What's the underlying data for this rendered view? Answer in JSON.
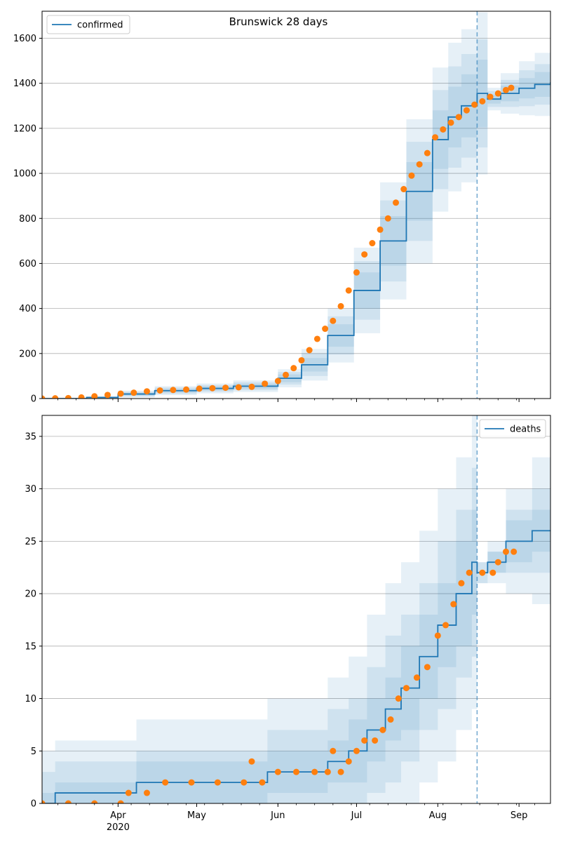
{
  "figure": {
    "title": "Brunswick 28 days"
  },
  "colors": {
    "model": "#1f77b4",
    "observed": "#ff7f0e",
    "grid": "#b0b0b0",
    "axis": "#000000"
  },
  "x_axis": {
    "range": [
      "2020-03-03",
      "2020-09-13"
    ],
    "month_ticks": [
      {
        "date": "2020-04-01",
        "label": "Apr",
        "sub": "2020"
      },
      {
        "date": "2020-05-01",
        "label": "May",
        "sub": ""
      },
      {
        "date": "2020-06-01",
        "label": "Jun",
        "sub": ""
      },
      {
        "date": "2020-07-01",
        "label": "Jul",
        "sub": ""
      },
      {
        "date": "2020-08-01",
        "label": "Aug",
        "sub": ""
      },
      {
        "date": "2020-09-01",
        "label": "Sep",
        "sub": ""
      }
    ],
    "forecast_start": "2020-08-16"
  },
  "chart_data": [
    {
      "type": "line",
      "legend": {
        "label": "confirmed",
        "position": "top-left"
      },
      "ylim": [
        0,
        1720
      ],
      "yticks": [
        0,
        200,
        400,
        600,
        800,
        1000,
        1200,
        1400,
        1600
      ],
      "grid": "horizontal",
      "model_curve": [
        [
          "2020-03-03",
          0
        ],
        [
          "2020-03-20",
          5
        ],
        [
          "2020-04-01",
          20
        ],
        [
          "2020-04-15",
          35
        ],
        [
          "2020-05-01",
          45
        ],
        [
          "2020-05-15",
          55
        ],
        [
          "2020-06-01",
          90
        ],
        [
          "2020-06-10",
          150
        ],
        [
          "2020-06-20",
          280
        ],
        [
          "2020-06-30",
          480
        ],
        [
          "2020-07-10",
          700
        ],
        [
          "2020-07-20",
          920
        ],
        [
          "2020-07-30",
          1150
        ],
        [
          "2020-08-05",
          1250
        ],
        [
          "2020-08-10",
          1300
        ],
        [
          "2020-08-16",
          1355
        ],
        [
          "2020-08-20",
          1330
        ],
        [
          "2020-08-25",
          1355
        ],
        [
          "2020-09-01",
          1378
        ],
        [
          "2020-09-07",
          1395
        ],
        [
          "2020-09-13",
          1405
        ]
      ],
      "bands": [
        {
          "half_width": [
            [
              0,
              0
            ],
            [
              5,
              4
            ],
            [
              20,
              15
            ],
            [
              35,
              20
            ],
            [
              45,
              22
            ],
            [
              55,
              26
            ],
            [
              90,
              40
            ],
            [
              150,
              70
            ],
            [
              280,
              120
            ],
            [
              480,
              190
            ],
            [
              700,
              260
            ],
            [
              920,
              320
            ],
            [
              1150,
              320
            ],
            [
              1250,
              330
            ],
            [
              1300,
              340
            ],
            [
              1355,
              360
            ],
            [
              1330,
              50
            ],
            [
              1355,
              90
            ],
            [
              1378,
              120
            ],
            [
              1395,
              140
            ],
            [
              1405,
              150
            ]
          ]
        },
        {
          "half_width": [
            [
              0,
              0
            ],
            [
              5,
              3
            ],
            [
              20,
              10
            ],
            [
              35,
              14
            ],
            [
              45,
              15
            ],
            [
              55,
              18
            ],
            [
              90,
              28
            ],
            [
              150,
              50
            ],
            [
              280,
              85
            ],
            [
              480,
              130
            ],
            [
              700,
              180
            ],
            [
              920,
              220
            ],
            [
              1150,
              220
            ],
            [
              1250,
              225
            ],
            [
              1300,
              230
            ],
            [
              1355,
              240
            ],
            [
              1330,
              35
            ],
            [
              1355,
              60
            ],
            [
              1378,
              80
            ],
            [
              1395,
              90
            ],
            [
              1405,
              95
            ]
          ]
        },
        {
          "half_width": [
            [
              0,
              0
            ],
            [
              5,
              2
            ],
            [
              20,
              6
            ],
            [
              35,
              8
            ],
            [
              45,
              9
            ],
            [
              55,
              11
            ],
            [
              90,
              17
            ],
            [
              150,
              30
            ],
            [
              280,
              50
            ],
            [
              480,
              80
            ],
            [
              700,
              110
            ],
            [
              920,
              130
            ],
            [
              1150,
              130
            ],
            [
              1250,
              135
            ],
            [
              1300,
              140
            ],
            [
              1355,
              150
            ],
            [
              1330,
              20
            ],
            [
              1355,
              35
            ],
            [
              1378,
              45
            ],
            [
              1395,
              55
            ],
            [
              1405,
              60
            ]
          ]
        }
      ],
      "observed": [
        [
          "2020-03-03",
          0
        ],
        [
          "2020-03-08",
          1
        ],
        [
          "2020-03-13",
          2
        ],
        [
          "2020-03-18",
          5
        ],
        [
          "2020-03-23",
          10
        ],
        [
          "2020-03-28",
          16
        ],
        [
          "2020-04-02",
          22
        ],
        [
          "2020-04-07",
          26
        ],
        [
          "2020-04-12",
          32
        ],
        [
          "2020-04-17",
          36
        ],
        [
          "2020-04-22",
          38
        ],
        [
          "2020-04-27",
          40
        ],
        [
          "2020-05-02",
          44
        ],
        [
          "2020-05-07",
          46
        ],
        [
          "2020-05-12",
          48
        ],
        [
          "2020-05-17",
          50
        ],
        [
          "2020-05-22",
          52
        ],
        [
          "2020-05-27",
          66
        ],
        [
          "2020-06-01",
          78
        ],
        [
          "2020-06-04",
          105
        ],
        [
          "2020-06-07",
          135
        ],
        [
          "2020-06-10",
          170
        ],
        [
          "2020-06-13",
          215
        ],
        [
          "2020-06-16",
          265
        ],
        [
          "2020-06-19",
          310
        ],
        [
          "2020-06-22",
          345
        ],
        [
          "2020-06-25",
          410
        ],
        [
          "2020-06-28",
          480
        ],
        [
          "2020-07-01",
          560
        ],
        [
          "2020-07-04",
          640
        ],
        [
          "2020-07-07",
          690
        ],
        [
          "2020-07-10",
          750
        ],
        [
          "2020-07-13",
          800
        ],
        [
          "2020-07-16",
          870
        ],
        [
          "2020-07-19",
          930
        ],
        [
          "2020-07-22",
          990
        ],
        [
          "2020-07-25",
          1040
        ],
        [
          "2020-07-28",
          1090
        ],
        [
          "2020-07-31",
          1160
        ],
        [
          "2020-08-03",
          1195
        ],
        [
          "2020-08-06",
          1225
        ],
        [
          "2020-08-09",
          1250
        ],
        [
          "2020-08-12",
          1280
        ],
        [
          "2020-08-15",
          1305
        ],
        [
          "2020-08-18",
          1320
        ],
        [
          "2020-08-21",
          1340
        ],
        [
          "2020-08-24",
          1355
        ],
        [
          "2020-08-27",
          1370
        ],
        [
          "2020-08-29",
          1380
        ]
      ]
    },
    {
      "type": "line",
      "legend": {
        "label": "deaths",
        "position": "top-right"
      },
      "ylim": [
        0,
        37
      ],
      "yticks": [
        0,
        5,
        10,
        15,
        20,
        25,
        30,
        35
      ],
      "grid": "horizontal",
      "model_curve": [
        [
          "2020-03-03",
          0
        ],
        [
          "2020-03-08",
          1
        ],
        [
          "2020-04-08",
          2
        ],
        [
          "2020-05-28",
          3
        ],
        [
          "2020-06-20",
          4
        ],
        [
          "2020-06-28",
          5
        ],
        [
          "2020-07-05",
          7
        ],
        [
          "2020-07-12",
          9
        ],
        [
          "2020-07-18",
          11
        ],
        [
          "2020-07-25",
          14
        ],
        [
          "2020-08-01",
          17
        ],
        [
          "2020-08-08",
          20
        ],
        [
          "2020-08-14",
          23
        ],
        [
          "2020-08-16",
          22
        ],
        [
          "2020-08-20",
          23
        ],
        [
          "2020-08-27",
          25
        ],
        [
          "2020-09-06",
          26
        ],
        [
          "2020-09-13",
          26
        ]
      ],
      "bands": [
        {
          "half_width": [
            [
              0,
              5
            ],
            [
              1,
              5
            ],
            [
              2,
              6
            ],
            [
              3,
              7
            ],
            [
              4,
              8
            ],
            [
              5,
              9
            ],
            [
              7,
              11
            ],
            [
              9,
              12
            ],
            [
              11,
              12
            ],
            [
              14,
              12
            ],
            [
              17,
              13
            ],
            [
              20,
              13
            ],
            [
              23,
              14
            ],
            [
              22,
              1
            ],
            [
              23,
              2
            ],
            [
              25,
              5
            ],
            [
              26,
              7
            ],
            [
              26,
              7
            ]
          ]
        },
        {
          "half_width": [
            [
              0,
              3
            ],
            [
              1,
              3
            ],
            [
              2,
              3
            ],
            [
              3,
              4
            ],
            [
              4,
              5
            ],
            [
              5,
              5
            ],
            [
              7,
              6
            ],
            [
              9,
              7
            ],
            [
              11,
              7
            ],
            [
              14,
              7
            ],
            [
              17,
              8
            ],
            [
              20,
              8
            ],
            [
              23,
              9
            ],
            [
              22,
              1
            ],
            [
              23,
              1
            ],
            [
              25,
              3
            ],
            [
              26,
              4
            ],
            [
              26,
              4
            ]
          ]
        },
        {
          "half_width": [
            [
              0,
              1
            ],
            [
              1,
              1
            ],
            [
              2,
              2
            ],
            [
              3,
              2
            ],
            [
              4,
              2
            ],
            [
              5,
              3
            ],
            [
              7,
              3
            ],
            [
              9,
              3
            ],
            [
              11,
              4
            ],
            [
              14,
              4
            ],
            [
              17,
              4
            ],
            [
              20,
              5
            ],
            [
              23,
              5
            ],
            [
              22,
              0
            ],
            [
              23,
              1
            ],
            [
              25,
              2
            ],
            [
              26,
              2
            ],
            [
              26,
              2
            ]
          ]
        }
      ],
      "observed": [
        [
          "2020-03-03",
          0
        ],
        [
          "2020-03-13",
          0
        ],
        [
          "2020-03-23",
          0
        ],
        [
          "2020-04-02",
          0
        ],
        [
          "2020-04-05",
          1
        ],
        [
          "2020-04-12",
          1
        ],
        [
          "2020-04-19",
          2
        ],
        [
          "2020-04-29",
          2
        ],
        [
          "2020-05-09",
          2
        ],
        [
          "2020-05-19",
          2
        ],
        [
          "2020-05-22",
          4
        ],
        [
          "2020-05-26",
          2
        ],
        [
          "2020-06-01",
          3
        ],
        [
          "2020-06-08",
          3
        ],
        [
          "2020-06-15",
          3
        ],
        [
          "2020-06-20",
          3
        ],
        [
          "2020-06-22",
          5
        ],
        [
          "2020-06-25",
          3
        ],
        [
          "2020-06-28",
          4
        ],
        [
          "2020-07-01",
          5
        ],
        [
          "2020-07-04",
          6
        ],
        [
          "2020-07-08",
          6
        ],
        [
          "2020-07-11",
          7
        ],
        [
          "2020-07-14",
          8
        ],
        [
          "2020-07-17",
          10
        ],
        [
          "2020-07-20",
          11
        ],
        [
          "2020-07-24",
          12
        ],
        [
          "2020-07-28",
          13
        ],
        [
          "2020-08-01",
          16
        ],
        [
          "2020-08-04",
          17
        ],
        [
          "2020-08-07",
          19
        ],
        [
          "2020-08-10",
          21
        ],
        [
          "2020-08-13",
          22
        ],
        [
          "2020-08-18",
          22
        ],
        [
          "2020-08-22",
          22
        ],
        [
          "2020-08-24",
          23
        ],
        [
          "2020-08-27",
          24
        ],
        [
          "2020-08-30",
          24
        ]
      ]
    }
  ]
}
